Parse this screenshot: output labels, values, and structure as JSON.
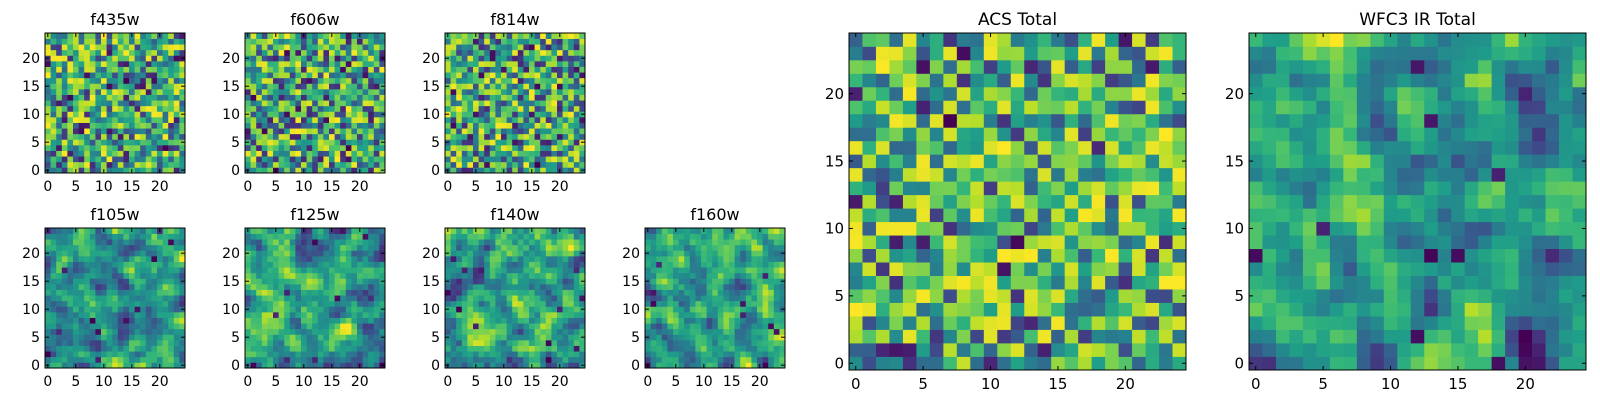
{
  "chart_data": [
    {
      "type": "heatmap",
      "title": "f435w",
      "xticks": [
        "0",
        "5",
        "10",
        "15",
        "20"
      ],
      "yticks": [
        "0",
        "5",
        "10",
        "15",
        "20"
      ],
      "grid_size": [
        25,
        25
      ],
      "xlim": [
        0,
        25
      ],
      "ylim": [
        0,
        25
      ],
      "seed": 11,
      "style": "noise",
      "colormap": "viridis"
    },
    {
      "type": "heatmap",
      "title": "f606w",
      "xticks": [
        "0",
        "5",
        "10",
        "15",
        "20"
      ],
      "yticks": [
        "0",
        "5",
        "10",
        "15",
        "20"
      ],
      "grid_size": [
        25,
        25
      ],
      "xlim": [
        0,
        25
      ],
      "ylim": [
        0,
        25
      ],
      "seed": 23,
      "style": "noise",
      "colormap": "viridis"
    },
    {
      "type": "heatmap",
      "title": "f814w",
      "xticks": [
        "0",
        "5",
        "10",
        "15",
        "20"
      ],
      "yticks": [
        "0",
        "5",
        "10",
        "15",
        "20"
      ],
      "grid_size": [
        25,
        25
      ],
      "xlim": [
        0,
        25
      ],
      "ylim": [
        0,
        25
      ],
      "seed": 37,
      "style": "noise",
      "colormap": "viridis"
    },
    {
      "type": "heatmap",
      "title": "f105w",
      "xticks": [
        "0",
        "5",
        "10",
        "15",
        "20"
      ],
      "yticks": [
        "0",
        "5",
        "10",
        "15",
        "20"
      ],
      "grid_size": [
        25,
        25
      ],
      "xlim": [
        0,
        25
      ],
      "ylim": [
        0,
        25
      ],
      "seed": 41,
      "style": "smooth",
      "colormap": "viridis"
    },
    {
      "type": "heatmap",
      "title": "f125w",
      "xticks": [
        "0",
        "5",
        "10",
        "15",
        "20"
      ],
      "yticks": [
        "0",
        "5",
        "10",
        "15",
        "20"
      ],
      "grid_size": [
        25,
        25
      ],
      "xlim": [
        0,
        25
      ],
      "ylim": [
        0,
        25
      ],
      "seed": 53,
      "style": "smooth",
      "colormap": "viridis"
    },
    {
      "type": "heatmap",
      "title": "f140w",
      "xticks": [
        "0",
        "5",
        "10",
        "15",
        "20"
      ],
      "yticks": [
        "0",
        "5",
        "10",
        "15",
        "20"
      ],
      "grid_size": [
        25,
        25
      ],
      "xlim": [
        0,
        25
      ],
      "ylim": [
        0,
        25
      ],
      "seed": 67,
      "style": "smooth",
      "colormap": "viridis"
    },
    {
      "type": "heatmap",
      "title": "f160w",
      "xticks": [
        "0",
        "5",
        "10",
        "15",
        "20"
      ],
      "yticks": [
        "0",
        "5",
        "10",
        "15",
        "20"
      ],
      "grid_size": [
        25,
        25
      ],
      "xlim": [
        0,
        25
      ],
      "ylim": [
        0,
        25
      ],
      "seed": 79,
      "style": "smooth",
      "colormap": "viridis"
    },
    {
      "type": "heatmap",
      "title": "ACS Total",
      "xticks": [
        "0",
        "5",
        "10",
        "15",
        "20"
      ],
      "yticks": [
        "0",
        "5",
        "10",
        "15",
        "20"
      ],
      "grid_size": [
        25,
        25
      ],
      "xlim": [
        0,
        25
      ],
      "ylim": [
        0,
        25
      ],
      "seed": 97,
      "style": "bright",
      "colormap": "viridis"
    },
    {
      "type": "heatmap",
      "title": "WFC3 IR Total",
      "xticks": [
        "0",
        "5",
        "10",
        "15",
        "20"
      ],
      "yticks": [
        "0",
        "5",
        "10",
        "15",
        "20"
      ],
      "grid_size": [
        25,
        25
      ],
      "xlim": [
        0,
        25
      ],
      "ylim": [
        0,
        25
      ],
      "seed": 131,
      "style": "smooth",
      "colormap": "viridis"
    }
  ]
}
